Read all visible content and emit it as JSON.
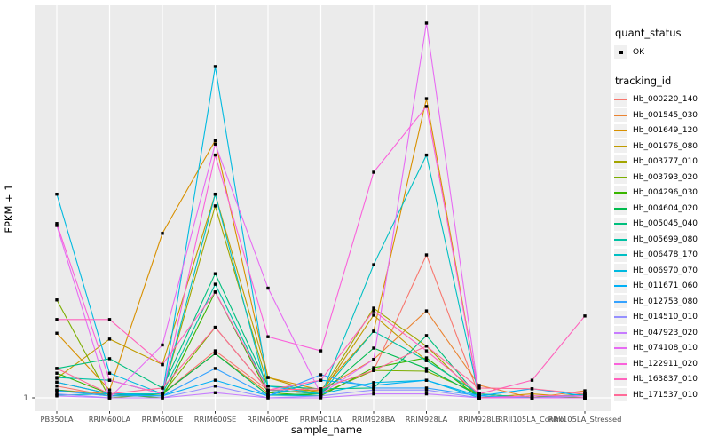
{
  "figure": {
    "bg": "#FFFFFF",
    "panel_bg": "#EBEBEB",
    "grid_color": "#FFFFFF",
    "tick_color": "#333333",
    "axis_text_color": "#4D4D4D",
    "point_color": "#000000"
  },
  "axes": {
    "xlabel": "sample_name",
    "ylabel": "FPKM + 1",
    "y_tick_label": "1"
  },
  "legend": {
    "quant_status_title": "quant_status",
    "quant_status_items": [
      {
        "label": "OK",
        "marker": "black-point"
      }
    ],
    "tracking_id_title": "tracking_id"
  },
  "chart_data": {
    "type": "line",
    "title": "",
    "xlabel": "sample_name",
    "ylabel": "FPKM + 1",
    "legend_position": "right",
    "grid": "vertical white gridline per category; horizontal white gridline at y=1",
    "y_axis": {
      "visible_ticks": [
        "1"
      ],
      "note": "Only the '1' tick is labeled on the y axis. Series values below are fractions of panel height above the y=1 baseline (0 = FPKM+1 = 1, 1 = panel top)."
    },
    "categories": [
      "PB350LA",
      "RRIM600LA",
      "RRIM600LE",
      "RRIM600SE",
      "RRIM600PE",
      "RRIM901LA",
      "RRIM928BA",
      "RRIM928LA",
      "RRIM928LE",
      "RRII105LA_Control",
      "RRII105LA_Stressed"
    ],
    "series": [
      {
        "name": "Hb_000220_140",
        "color": "#F8766D",
        "values": [
          0.03,
          0.005,
          0.01,
          0.12,
          0.02,
          0.01,
          0.07,
          0.365,
          0.005,
          0.0,
          0.01
        ]
      },
      {
        "name": "Hb_001545_030",
        "color": "#EA8331",
        "values": [
          0.02,
          0.01,
          0.01,
          0.113,
          0.013,
          0.02,
          0.098,
          0.222,
          0.032,
          0.0,
          0.018
        ]
      },
      {
        "name": "Hb_001649_120",
        "color": "#D89000",
        "values": [
          0.165,
          0.02,
          0.42,
          0.657,
          0.052,
          0.02,
          0.17,
          0.764,
          0.0,
          0.01,
          0.0
        ]
      },
      {
        "name": "Hb_001976_080",
        "color": "#C09B00",
        "values": [
          0.05,
          0.15,
          0.085,
          0.52,
          0.052,
          0.01,
          0.211,
          0.095,
          0.01,
          0.0,
          0.01
        ]
      },
      {
        "name": "Hb_003777_010",
        "color": "#A3A500",
        "values": [
          0.04,
          0.01,
          0.01,
          0.49,
          0.03,
          0.015,
          0.229,
          0.132,
          0.0,
          0.0,
          0.0
        ]
      },
      {
        "name": "Hb_003793_020",
        "color": "#7CAE00",
        "values": [
          0.25,
          0.0,
          0.01,
          0.18,
          0.02,
          0.01,
          0.07,
          0.068,
          0.01,
          0.0,
          0.0
        ]
      },
      {
        "name": "Hb_004296_030",
        "color": "#39B600",
        "values": [
          0.063,
          0.01,
          0.0,
          0.27,
          0.013,
          0.005,
          0.077,
          0.102,
          0.0,
          0.005,
          0.0
        ]
      },
      {
        "name": "Hb_004604_020",
        "color": "#00BB4E",
        "values": [
          0.02,
          0.005,
          0.01,
          0.113,
          0.007,
          0.01,
          0.127,
          0.075,
          0.005,
          0.0,
          0.0
        ]
      },
      {
        "name": "Hb_005045_040",
        "color": "#00BF7D",
        "values": [
          0.075,
          0.1,
          0.025,
          0.317,
          0.03,
          0.023,
          0.025,
          0.159,
          0.0,
          0.0,
          0.009
        ]
      },
      {
        "name": "Hb_005699_080",
        "color": "#00C1A3",
        "values": [
          0.052,
          0.045,
          0.01,
          0.29,
          0.02,
          0.01,
          0.17,
          0.095,
          0.01,
          0.0,
          0.0
        ]
      },
      {
        "name": "Hb_006478_170",
        "color": "#00BFC4",
        "values": [
          0.007,
          0.01,
          0.01,
          0.52,
          0.007,
          0.005,
          0.34,
          0.62,
          0.0,
          0.0,
          0.0
        ]
      },
      {
        "name": "Hb_006970_070",
        "color": "#00BAE0",
        "values": [
          0.52,
          0.063,
          0.01,
          0.846,
          0.03,
          0.01,
          0.039,
          0.045,
          0.0,
          0.0,
          0.0
        ]
      },
      {
        "name": "Hb_011671_060",
        "color": "#00B0F6",
        "values": [
          0.04,
          0.01,
          0.005,
          0.045,
          0.005,
          0.045,
          0.032,
          0.045,
          0.005,
          0.023,
          0.005
        ]
      },
      {
        "name": "Hb_012753_080",
        "color": "#35A2FF",
        "values": [
          0.018,
          0.005,
          0.005,
          0.075,
          0.005,
          0.059,
          0.025,
          0.025,
          0.005,
          0.0,
          0.0
        ]
      },
      {
        "name": "Hb_014510_010",
        "color": "#9590FF",
        "values": [
          0.01,
          0.0,
          0.0,
          0.03,
          0.0,
          0.005,
          0.02,
          0.02,
          0.0,
          0.0,
          0.005
        ]
      },
      {
        "name": "Hb_047923_020",
        "color": "#C77CFF",
        "values": [
          0.005,
          0.0,
          0.0,
          0.013,
          0.0,
          0.0,
          0.01,
          0.01,
          0.0,
          0.0,
          0.0
        ]
      },
      {
        "name": "Hb_074108_010",
        "color": "#E76BF3",
        "values": [
          0.44,
          0.0,
          0.135,
          0.648,
          0.28,
          0.01,
          0.098,
          0.957,
          0.0,
          0.0,
          0.0
        ]
      },
      {
        "name": "Hb_122911_020",
        "color": "#FA62DB",
        "values": [
          0.445,
          0.045,
          0.01,
          0.62,
          0.156,
          0.12,
          0.576,
          0.744,
          0.0,
          0.005,
          0.005
        ]
      },
      {
        "name": "Hb_163837_010",
        "color": "#FF62BC",
        "values": [
          0.2,
          0.2,
          0.085,
          0.27,
          0.02,
          0.045,
          0.222,
          0.12,
          0.01,
          0.045,
          0.209
        ]
      },
      {
        "name": "Hb_171537_010",
        "color": "#FF6A98",
        "values": [
          0.075,
          0.01,
          0.025,
          0.18,
          0.02,
          0.023,
          0.07,
          0.132,
          0.025,
          0.023,
          0.01
        ]
      }
    ]
  }
}
